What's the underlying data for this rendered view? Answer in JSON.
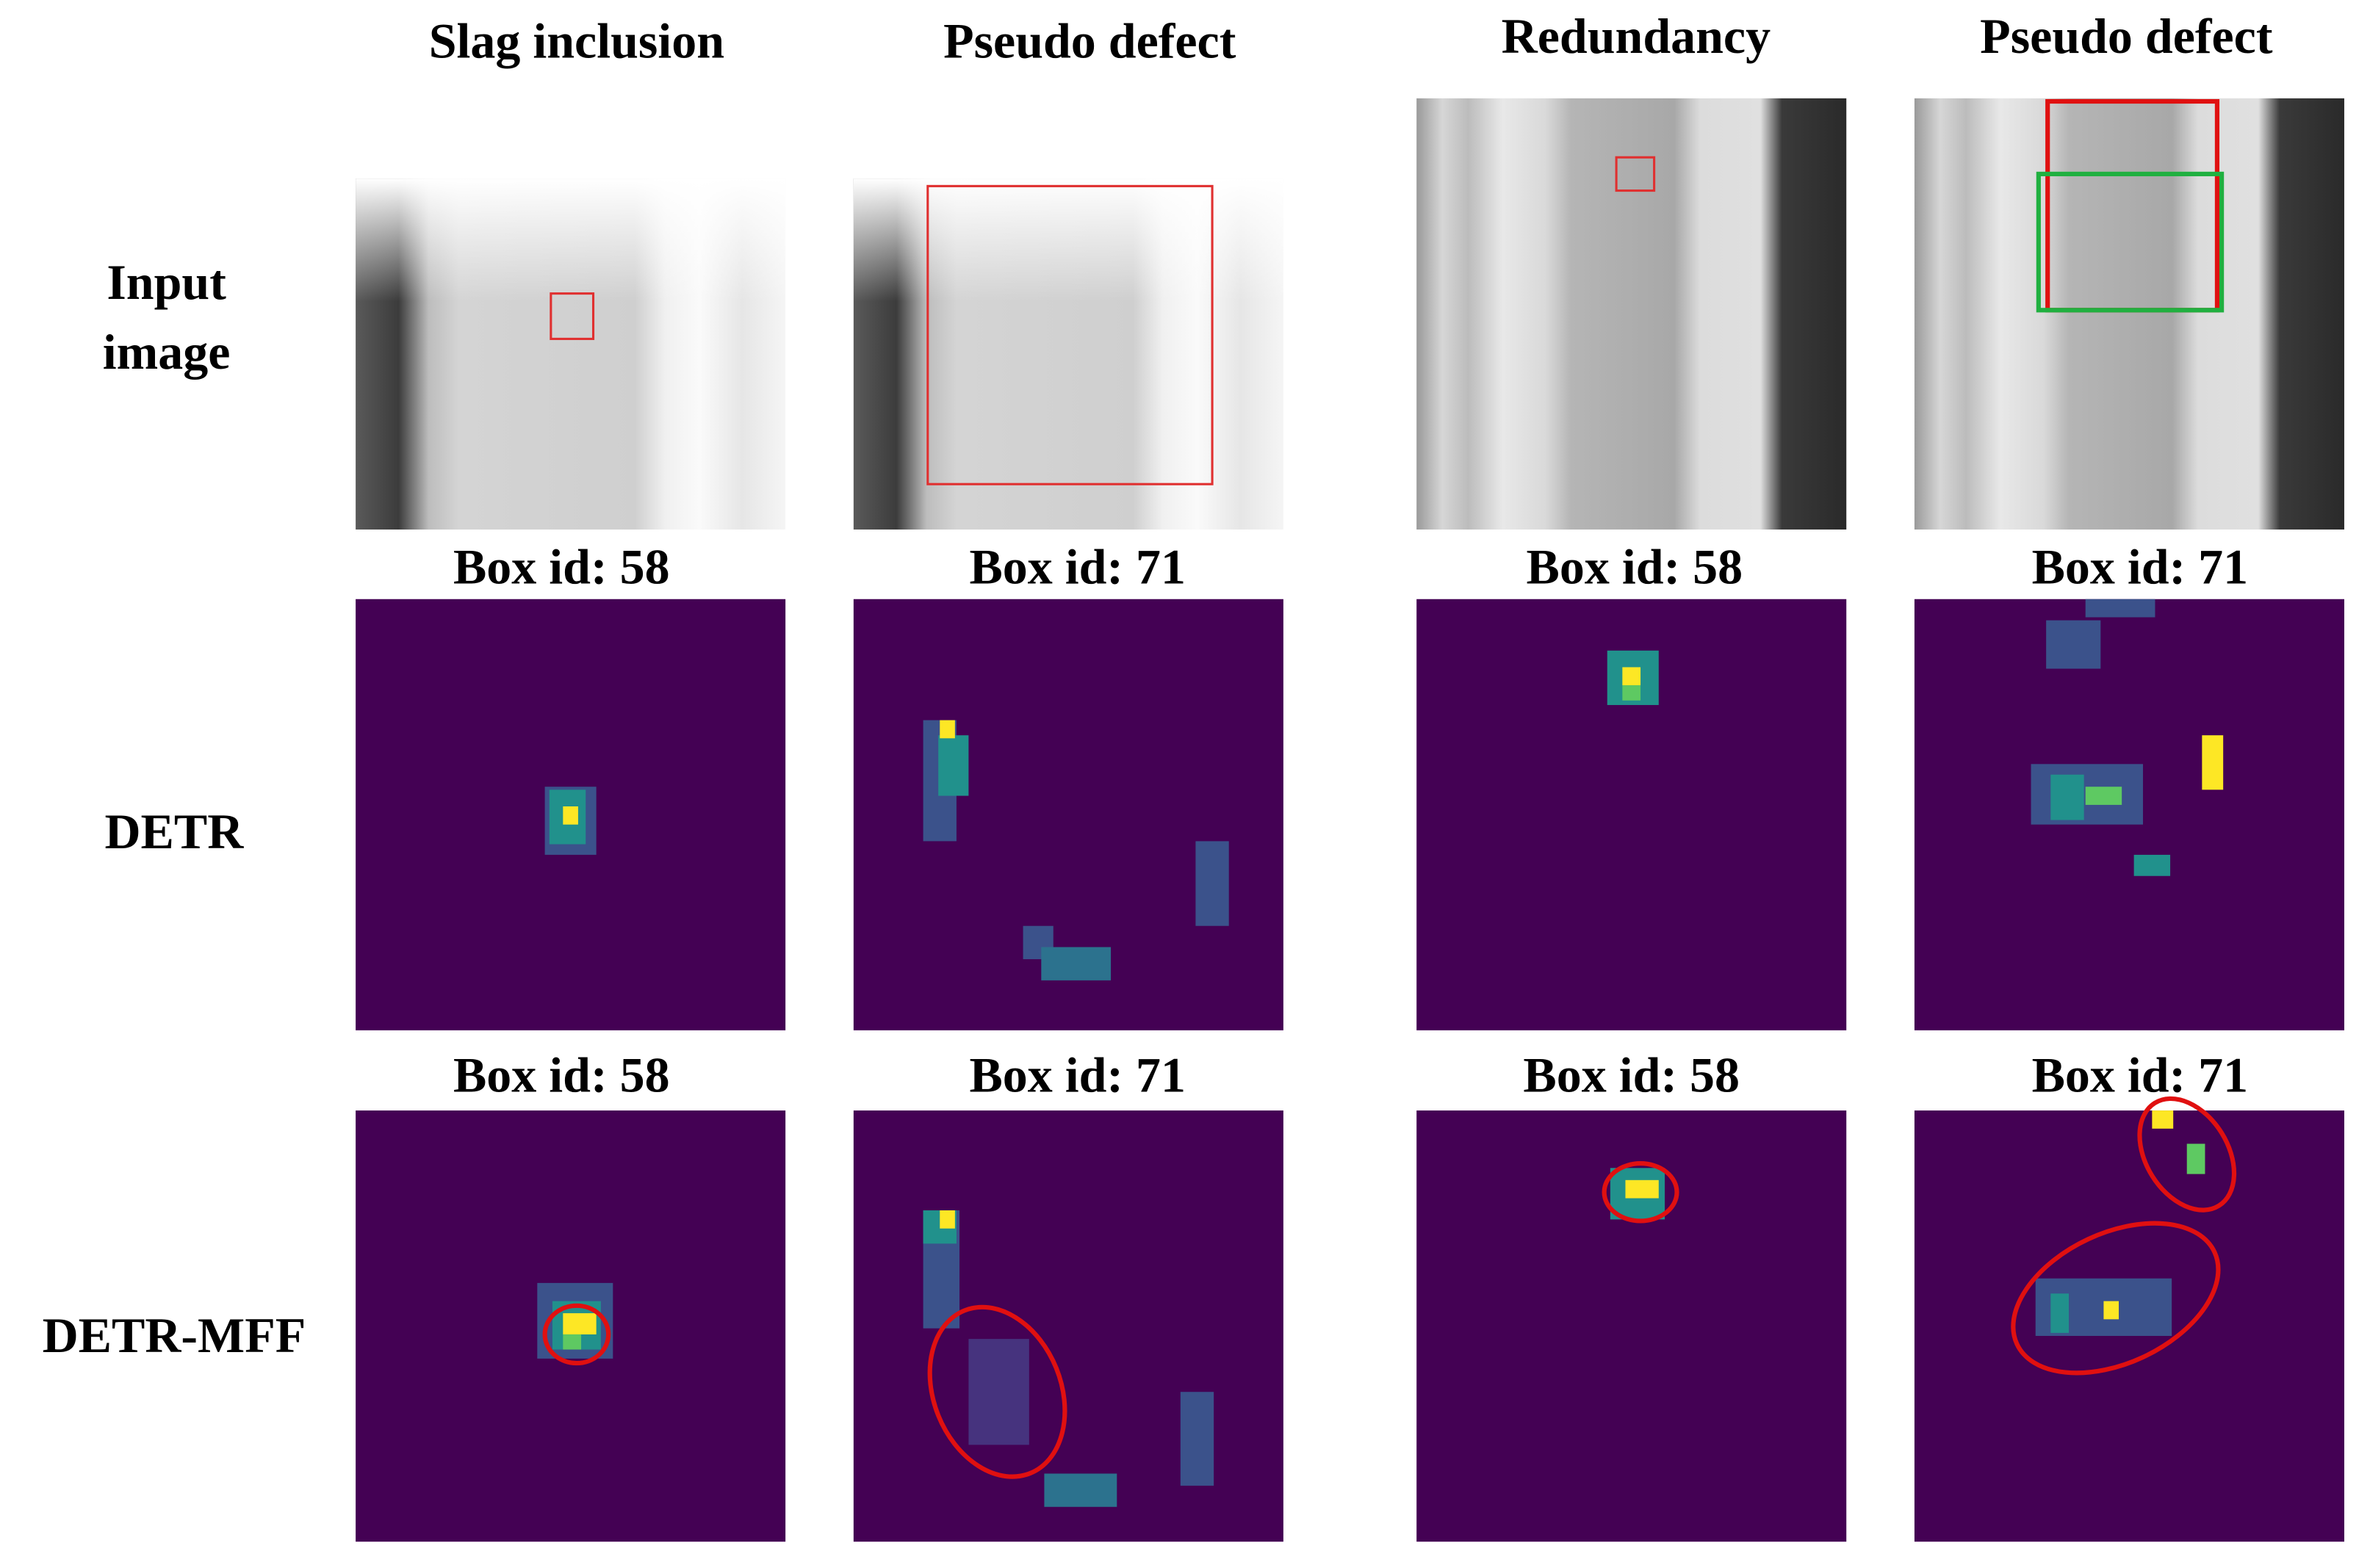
{
  "columns": [
    {
      "title": "Slag inclusion"
    },
    {
      "title": "Pseudo defect"
    },
    {
      "title": "Redundancy"
    },
    {
      "title": "Pseudo defect"
    }
  ],
  "rows": [
    {
      "label_lines": [
        "Input",
        "image"
      ]
    },
    {
      "label": "DETR",
      "box_ids": [
        "Box id: 58",
        "Box id: 71",
        "Box id: 58",
        "Box id: 71"
      ]
    },
    {
      "label": "DETR-MFF",
      "box_ids": [
        "Box id: 58",
        "Box id: 71",
        "Box id: 58",
        "Box id: 71"
      ]
    }
  ]
}
